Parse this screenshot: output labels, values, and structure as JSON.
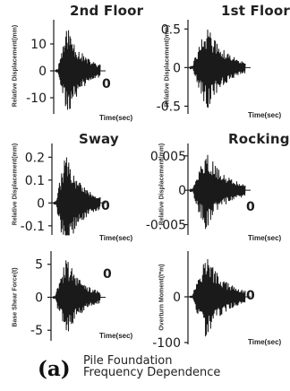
{
  "chart_data": [
    {
      "type": "line",
      "title": "2nd Floor",
      "ylabel": "Relative Displacement(mm)",
      "xlabel": "Time(sec)",
      "ylim": [
        -16,
        19
      ],
      "yticks": [
        "10",
        "0",
        "-10"
      ],
      "ytick_values": [
        10,
        0,
        -10
      ],
      "x_end_label": "0",
      "y_scale": 1,
      "grid": false,
      "envelope": {
        "seed": 11,
        "peak_time": 0.28,
        "amplitude": 17
      }
    },
    {
      "type": "line",
      "title": "1st Floor",
      "ylabel": "Relative Displacement(mm)",
      "xlabel": "Time(sec)",
      "ylim": [
        -0.6,
        0.62
      ],
      "yticks": [
        "0.5",
        "0",
        "-0.5"
      ],
      "ytick_values": [
        0.5,
        0,
        -0.5
      ],
      "x_end_label": "",
      "y_scale": 1,
      "grid": false,
      "envelope": {
        "seed": 29,
        "peak_time": 0.32,
        "amplitude": 0.55
      }
    },
    {
      "type": "line",
      "title": "Sway",
      "ylabel": "Relative Displacement(mm)",
      "xlabel": "Time(sec)",
      "ylim": [
        -0.14,
        0.26
      ],
      "yticks": [
        "0.2",
        "0.1",
        "0",
        "-0.1"
      ],
      "ytick_values": [
        0.2,
        0.1,
        0,
        -0.1
      ],
      "x_end_label": "0",
      "y_scale": 1,
      "grid": false,
      "envelope": {
        "seed": 47,
        "peak_time": 0.27,
        "amplitude": 0.22
      }
    },
    {
      "type": "line",
      "title": "Rocking",
      "ylabel": "Relative Displacement(mm)",
      "xlabel": "Time(sec)",
      "ylim": [
        -0.0065,
        0.0068
      ],
      "yticks": [
        "0.005",
        "0",
        "-0.005"
      ],
      "ytick_values": [
        0.005,
        0,
        -0.005
      ],
      "x_end_label": "0",
      "y_scale": 1,
      "grid": false,
      "envelope": {
        "seed": 63,
        "peak_time": 0.3,
        "amplitude": 0.006
      }
    },
    {
      "type": "line",
      "title": "",
      "ylabel": "Base Shear Force(t)",
      "xlabel": "Time(sec)",
      "ylim": [
        -6.6,
        7
      ],
      "yticks": [
        "5",
        "0",
        "-5"
      ],
      "ytick_values": [
        5,
        0,
        -5
      ],
      "x_end_label": "0",
      "y_scale": 1,
      "grid": false,
      "envelope": {
        "seed": 81,
        "peak_time": 0.3,
        "amplitude": 6
      }
    },
    {
      "type": "line",
      "title": "",
      "ylabel": "Overturn Moment(t*m)",
      "xlabel": "Time(sec)",
      "ylim": [
        -104,
        100
      ],
      "yticks": [
        "0",
        "-100"
      ],
      "ytick_values": [
        0,
        -100
      ],
      "x_end_label": "0",
      "y_scale": 1,
      "grid": false,
      "envelope": {
        "seed": 97,
        "peak_time": 0.3,
        "amplitude": 95
      }
    }
  ],
  "caption": {
    "letter": "(a)",
    "line1": "Pile Foundation",
    "line2": "Frequency Dependence"
  }
}
